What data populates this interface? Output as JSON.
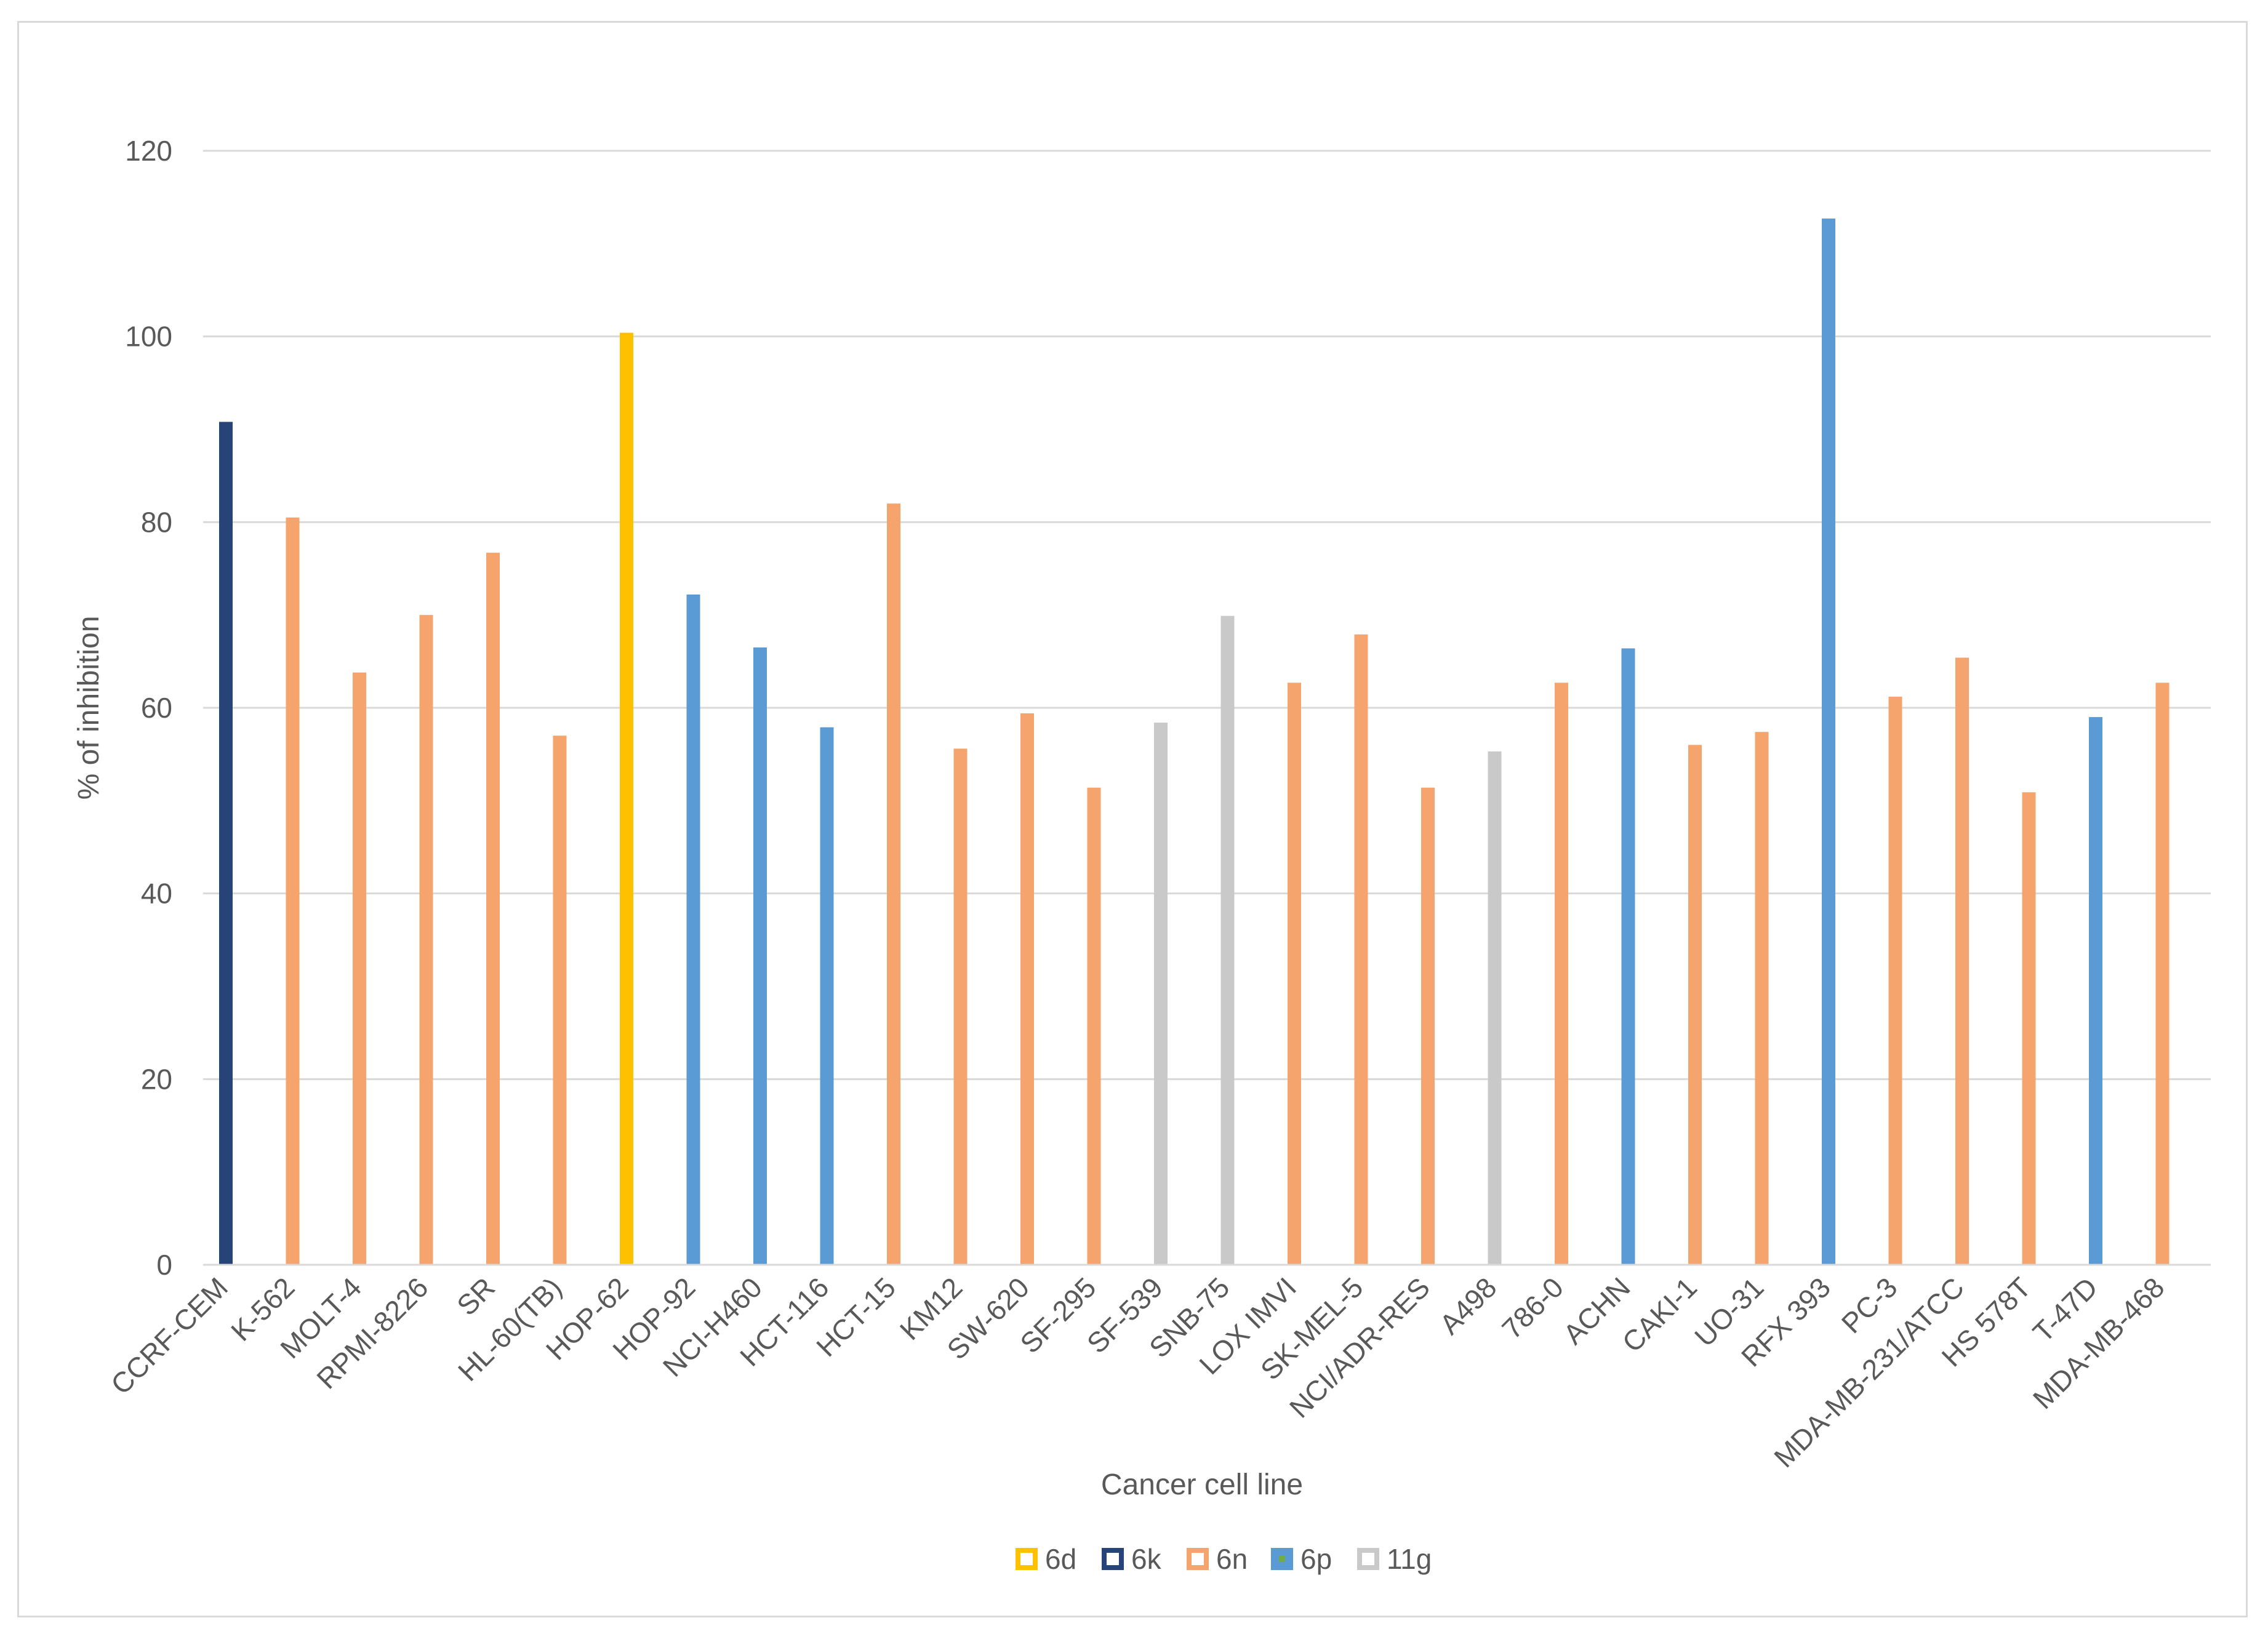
{
  "chart_data": {
    "type": "bar",
    "title": "",
    "xlabel": "Cancer cell line",
    "ylabel": "% of inhibition",
    "ylim": [
      0,
      120
    ],
    "yticks": [
      "0",
      "20",
      "40",
      "60",
      "80",
      "100",
      "120"
    ],
    "grid": true,
    "legend_position": "bottom",
    "series": [
      {
        "name": "6d",
        "color": "#FFC000",
        "style": "outline"
      },
      {
        "name": "6k",
        "color": "#264478",
        "style": "outline"
      },
      {
        "name": "6n",
        "color": "#F4A46C",
        "style": "outline"
      },
      {
        "name": "6p",
        "color": "#5B9BD5",
        "style": "filled",
        "marker": "#70AD47"
      },
      {
        "name": "11g",
        "color": "#C9C9C9",
        "style": "outline"
      }
    ],
    "categories": [
      "CCRF-CEM",
      "K-562",
      "MOLT-4",
      "RPMI-8226",
      "SR",
      "HL-60(TB)",
      "HOP-62",
      "HOP-92",
      "NCI-H460",
      "HCT-116",
      "HCT-15",
      "KM12",
      "SW-620",
      "SF-295",
      "SF-539",
      "SNB-75",
      "LOX IMVI",
      "SK-MEL-5",
      "NCI/ADR-RES",
      "A498",
      "786-0",
      "ACHN",
      "CAKI-1",
      "UO-31",
      "RFX 393",
      "PC-3",
      "MDA-MB-231/ATCC",
      "HS 578T",
      "T-47D",
      "MDA-MB-468"
    ],
    "bars": [
      {
        "category": "CCRF-CEM",
        "series": "6k",
        "value": 90.8,
        "fill": "#264478"
      },
      {
        "category": "K-562",
        "series": "6n",
        "value": 80.5,
        "fill": "#F4A46C"
      },
      {
        "category": "MOLT-4",
        "series": "6n",
        "value": 63.8,
        "fill": "#F4A46C"
      },
      {
        "category": "RPMI-8226",
        "series": "6n",
        "value": 70.0,
        "fill": "#F4A46C"
      },
      {
        "category": "SR",
        "series": "6n",
        "value": 76.7,
        "fill": "#F4A46C"
      },
      {
        "category": "HL-60(TB)",
        "series": "6n",
        "value": 57.0,
        "fill": "#F4A46C"
      },
      {
        "category": "HOP-62",
        "series": "6d",
        "value": 100.4,
        "fill": "#FFC000"
      },
      {
        "category": "HOP-92",
        "series": "6p",
        "value": 72.2,
        "fill": "#5B9BD5"
      },
      {
        "category": "NCI-H460",
        "series": "6p",
        "value": 66.5,
        "fill": "#5B9BD5"
      },
      {
        "category": "HCT-116",
        "series": "6p",
        "value": 57.9,
        "fill": "#5B9BD5"
      },
      {
        "category": "HCT-15",
        "series": "6n",
        "value": 82.0,
        "fill": "#F4A46C"
      },
      {
        "category": "KM12",
        "series": "6n",
        "value": 55.6,
        "fill": "#F4A46C"
      },
      {
        "category": "SW-620",
        "series": "6n",
        "value": 59.4,
        "fill": "#F4A46C"
      },
      {
        "category": "SF-295",
        "series": "6n",
        "value": 51.4,
        "fill": "#F4A46C"
      },
      {
        "category": "SF-539",
        "series": "11g",
        "value": 58.4,
        "fill": "#C9C9C9"
      },
      {
        "category": "SNB-75",
        "series": "11g",
        "value": 69.9,
        "fill": "#C9C9C9"
      },
      {
        "category": "LOX IMVI",
        "series": "6n",
        "value": 62.7,
        "fill": "#F4A46C"
      },
      {
        "category": "SK-MEL-5",
        "series": "6n",
        "value": 67.9,
        "fill": "#F4A46C"
      },
      {
        "category": "NCI/ADR-RES",
        "series": "6n",
        "value": 51.4,
        "fill": "#F4A46C"
      },
      {
        "category": "A498",
        "series": "11g",
        "value": 55.3,
        "fill": "#C9C9C9"
      },
      {
        "category": "786-0",
        "series": "6n",
        "value": 62.7,
        "fill": "#F4A46C"
      },
      {
        "category": "ACHN",
        "series": "6p",
        "value": 66.4,
        "fill": "#5B9BD5"
      },
      {
        "category": "CAKI-1",
        "series": "6n",
        "value": 56.0,
        "fill": "#F4A46C"
      },
      {
        "category": "UO-31",
        "series": "6n",
        "value": 57.4,
        "fill": "#F4A46C"
      },
      {
        "category": "RFX 393",
        "series": "6p",
        "value": 112.7,
        "fill": "#5B9BD5"
      },
      {
        "category": "PC-3",
        "series": "6n",
        "value": 61.2,
        "fill": "#F4A46C"
      },
      {
        "category": "MDA-MB-231/ATCC",
        "series": "6n",
        "value": 65.4,
        "fill": "#F4A46C"
      },
      {
        "category": "HS 578T",
        "series": "6n",
        "value": 50.9,
        "fill": "#F4A46C"
      },
      {
        "category": "T-47D",
        "series": "6p",
        "value": 59.0,
        "fill": "#5B9BD5"
      },
      {
        "category": "MDA-MB-468",
        "series": "6n",
        "value": 62.7,
        "fill": "#F4A46C"
      }
    ]
  }
}
